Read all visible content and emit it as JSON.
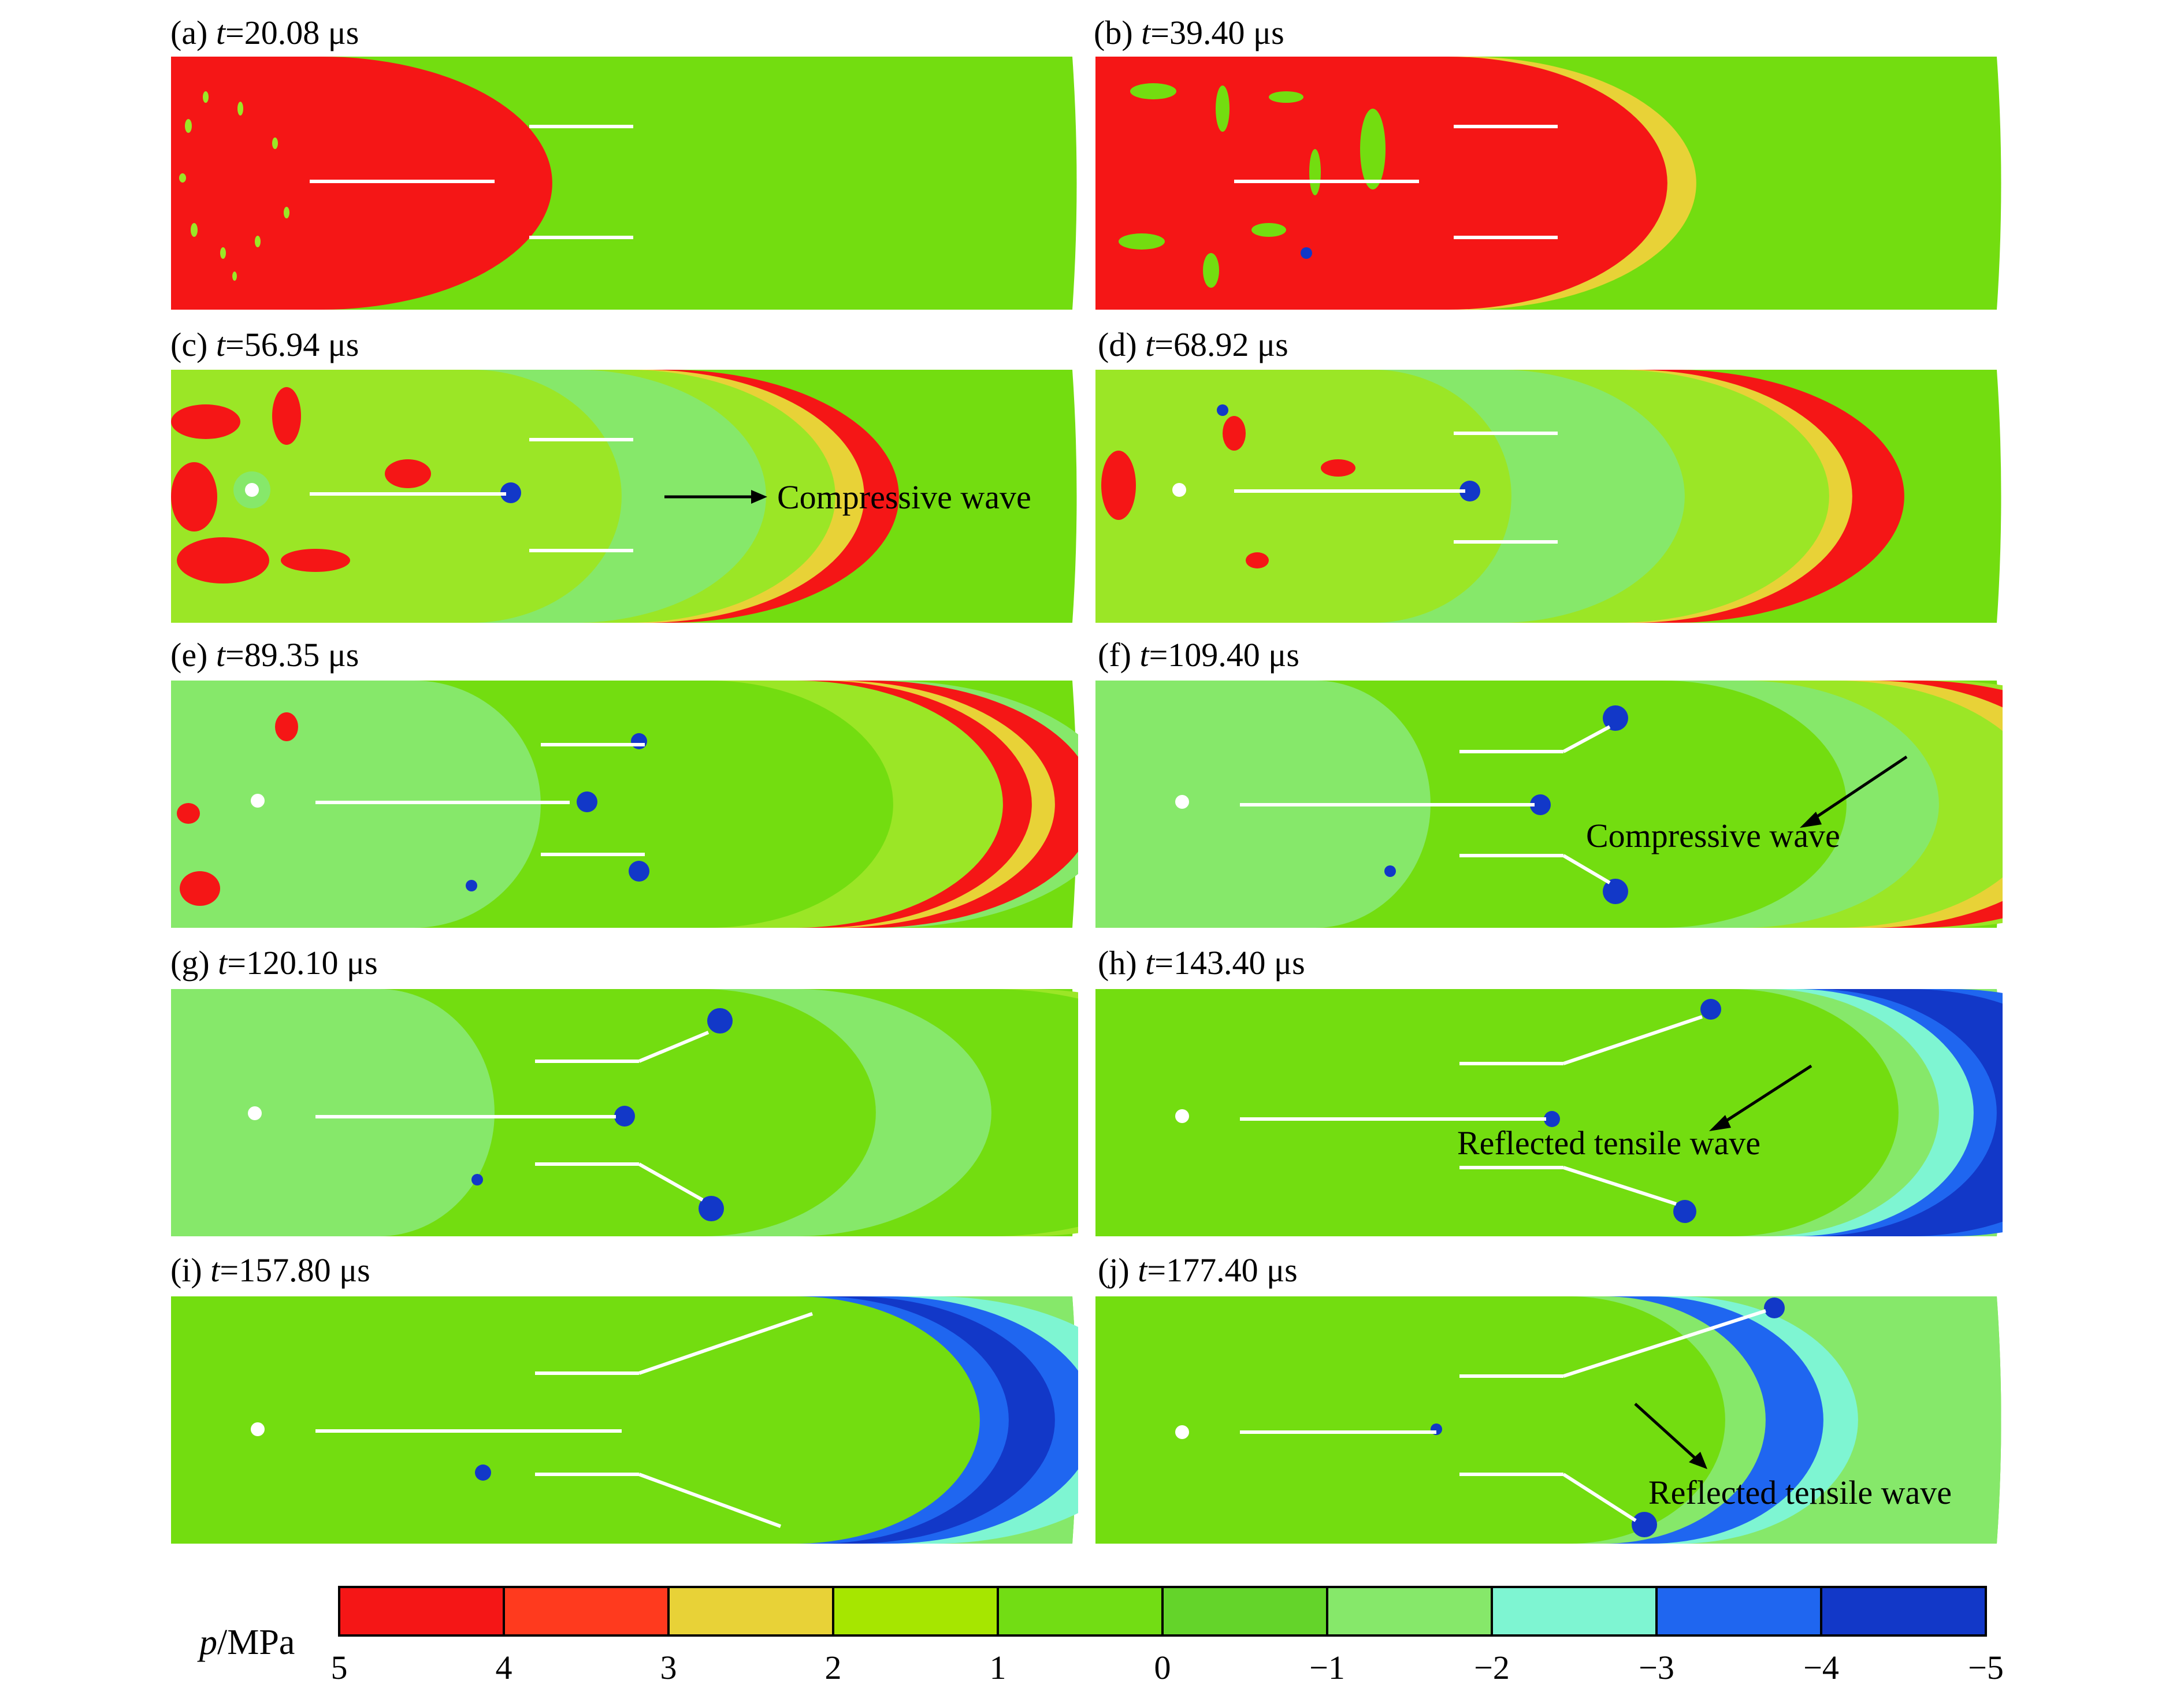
{
  "panels": [
    {
      "id": "a",
      "prefix": "(a) ",
      "var": "t",
      "value": "=20.08 μs"
    },
    {
      "id": "b",
      "prefix": "(b) ",
      "var": "t",
      "value": "=39.40 μs"
    },
    {
      "id": "c",
      "prefix": "(c) ",
      "var": "t",
      "value": "=56.94 μs"
    },
    {
      "id": "d",
      "prefix": "(d) ",
      "var": "t",
      "value": "=68.92 μs"
    },
    {
      "id": "e",
      "prefix": "(e) ",
      "var": "t",
      "value": "=89.35 μs"
    },
    {
      "id": "f",
      "prefix": "(f) ",
      "var": "t",
      "value": "=109.40 μs"
    },
    {
      "id": "g",
      "prefix": "(g) ",
      "var": "t",
      "value": "=120.10 μs"
    },
    {
      "id": "h",
      "prefix": "(h) ",
      "var": "t",
      "value": "=143.40 μs"
    },
    {
      "id": "i",
      "prefix": "(i) ",
      "var": "t",
      "value": "=157.80 μs"
    },
    {
      "id": "j",
      "prefix": "(j) ",
      "var": "t",
      "value": "=177.40 μs"
    }
  ],
  "annotations": {
    "c": "Compressive wave",
    "f": "Compressive wave",
    "h": "Reflected tensile wave",
    "j": "Reflected tensile wave"
  },
  "colorbar": {
    "title_var": "p",
    "title_unit": "/MPa",
    "ticks": [
      "5",
      "4",
      "3",
      "2",
      "1",
      "0",
      "−1",
      "−2",
      "−3",
      "−4",
      "−5"
    ],
    "colors": [
      "#f51616",
      "#ff3a1e",
      "#e8d237",
      "#a6e600",
      "#72dd14",
      "#64d42a",
      "#86e86a",
      "#7ef5d2",
      "#1f66f0",
      "#1238c8"
    ]
  },
  "colors": {
    "background_field": "#73dd10",
    "high": "#f51616",
    "mid_high": "#e8d237",
    "low": "#7ef5d2",
    "min": "#1238c8",
    "crack": "#ffffff"
  }
}
